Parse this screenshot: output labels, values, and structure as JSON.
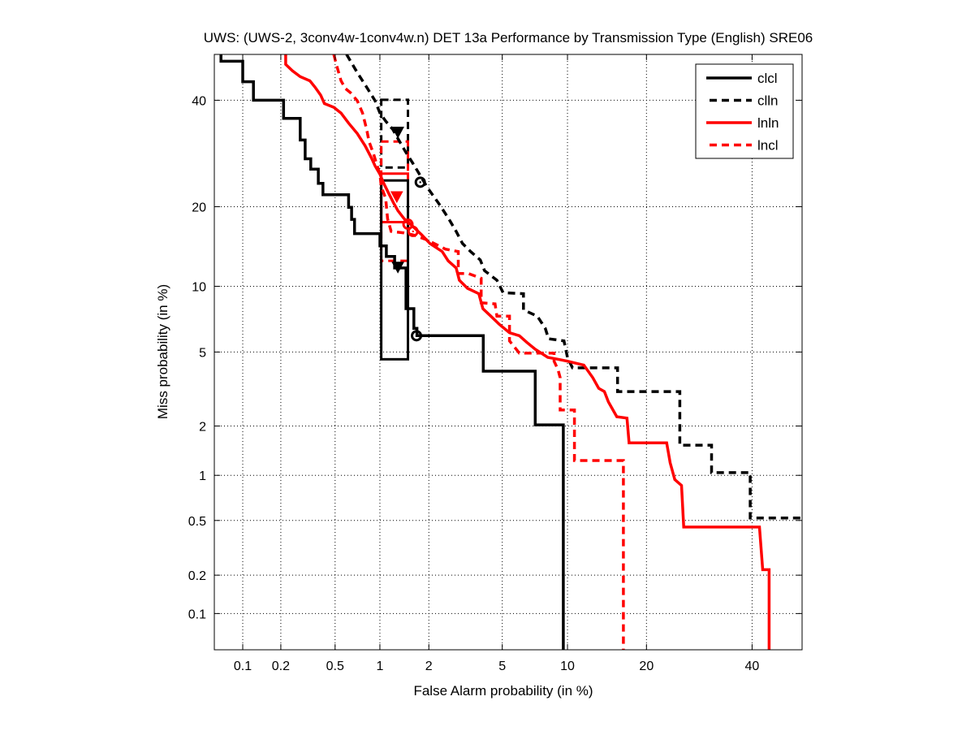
{
  "chart_data": {
    "type": "line",
    "scale": "normal-deviate (DET)",
    "title": "UWS: (UWS-2, 3conv4w-1conv4w.n) DET 13a Performance by Transmission Type (English) SRE06",
    "xlabel": "False Alarm probability (in %)",
    "ylabel": "Miss probability (in %)",
    "xlim": [
      0.058,
      51
    ],
    "ylim": [
      0.05,
      50
    ],
    "xticks": [
      0.1,
      0.2,
      0.5,
      1,
      2,
      5,
      10,
      20,
      40
    ],
    "xtick_labels": [
      "0.1",
      "0.2",
      "0.5",
      "1",
      "2",
      "5",
      "10",
      "20",
      "40"
    ],
    "yticks": [
      0.1,
      0.2,
      0.5,
      1,
      2,
      5,
      10,
      20,
      40
    ],
    "ytick_labels": [
      "0.1",
      "0.2",
      "0.5",
      "1",
      "2",
      "5",
      "10",
      "20",
      "40"
    ],
    "grid": true,
    "legend_position": "top-right",
    "series": [
      {
        "name": "clcl",
        "color": "#000000",
        "dash": "solid",
        "points": [
          [
            0.066,
            50
          ],
          [
            0.066,
            48.5
          ],
          [
            0.1,
            48.5
          ],
          [
            0.1,
            44
          ],
          [
            0.122,
            44
          ],
          [
            0.122,
            40
          ],
          [
            0.21,
            40
          ],
          [
            0.21,
            36.2
          ],
          [
            0.28,
            36.2
          ],
          [
            0.28,
            31.8
          ],
          [
            0.305,
            31.8
          ],
          [
            0.305,
            28.2
          ],
          [
            0.335,
            28.2
          ],
          [
            0.335,
            26.3
          ],
          [
            0.38,
            26.3
          ],
          [
            0.38,
            23.8
          ],
          [
            0.41,
            23.8
          ],
          [
            0.41,
            21.9
          ],
          [
            0.62,
            21.9
          ],
          [
            0.62,
            19.9
          ],
          [
            0.65,
            19.9
          ],
          [
            0.65,
            18.1
          ],
          [
            0.68,
            18.1
          ],
          [
            0.68,
            16.1
          ],
          [
            1.0,
            16.1
          ],
          [
            1.0,
            14.5
          ],
          [
            1.1,
            14.5
          ],
          [
            1.1,
            13.2
          ],
          [
            1.24,
            13.2
          ],
          [
            1.24,
            11.9
          ],
          [
            1.46,
            11.9
          ],
          [
            1.46,
            8.0
          ],
          [
            1.63,
            8.0
          ],
          [
            1.63,
            6.5
          ],
          [
            1.7,
            6.5
          ],
          [
            1.7,
            6.0
          ],
          [
            4.0,
            6.0
          ],
          [
            4.0,
            4.0
          ],
          [
            7.2,
            4.0
          ],
          [
            7.2,
            2.03
          ],
          [
            9.6,
            2.03
          ],
          [
            9.6,
            0.05
          ]
        ]
      },
      {
        "name": "clln",
        "color": "#000000",
        "dash": "dashed",
        "points": [
          [
            0.6,
            50
          ],
          [
            0.71,
            46
          ],
          [
            0.82,
            42.8
          ],
          [
            0.93,
            39.9
          ],
          [
            1.0,
            37.3
          ],
          [
            1.09,
            35.6
          ],
          [
            1.21,
            33.9
          ],
          [
            1.31,
            31.9
          ],
          [
            1.46,
            29.4
          ],
          [
            1.59,
            27.6
          ],
          [
            1.76,
            25.4
          ],
          [
            1.97,
            23.0
          ],
          [
            2.27,
            20.6
          ],
          [
            2.6,
            18.2
          ],
          [
            2.86,
            16.4
          ],
          [
            3.1,
            14.8
          ],
          [
            3.43,
            13.8
          ],
          [
            3.86,
            12.8
          ],
          [
            4.06,
            11.6
          ],
          [
            4.7,
            10.6
          ],
          [
            5.05,
            9.4
          ],
          [
            6.34,
            9.3
          ],
          [
            6.34,
            7.9
          ],
          [
            7.36,
            7.4
          ],
          [
            8.0,
            6.5
          ],
          [
            8.27,
            5.8
          ],
          [
            9.66,
            5.67
          ],
          [
            10.0,
            4.7
          ],
          [
            10.5,
            4.16
          ],
          [
            15.8,
            4.16
          ],
          [
            15.8,
            3.12
          ],
          [
            25.6,
            3.12
          ],
          [
            25.6,
            1.54
          ],
          [
            31.6,
            1.54
          ],
          [
            31.6,
            1.04
          ],
          [
            39.6,
            1.04
          ],
          [
            39.6,
            0.52
          ],
          [
            50.9,
            0.52
          ]
        ]
      },
      {
        "name": "lnln",
        "color": "#ff0000",
        "dash": "solid",
        "points": [
          [
            0.218,
            50
          ],
          [
            0.218,
            47.8
          ],
          [
            0.245,
            46.4
          ],
          [
            0.28,
            45.1
          ],
          [
            0.33,
            44.2
          ],
          [
            0.36,
            42.8
          ],
          [
            0.395,
            41.1
          ],
          [
            0.42,
            39.3
          ],
          [
            0.49,
            38.5
          ],
          [
            0.55,
            37.3
          ],
          [
            0.62,
            35.2
          ],
          [
            0.71,
            33.1
          ],
          [
            0.8,
            30.7
          ],
          [
            0.88,
            28.4
          ],
          [
            0.93,
            26.9
          ],
          [
            1.0,
            25.4
          ],
          [
            1.05,
            24.0
          ],
          [
            1.15,
            21.9
          ],
          [
            1.22,
            20.6
          ],
          [
            1.3,
            19.4
          ],
          [
            1.42,
            18.2
          ],
          [
            1.59,
            17.2
          ],
          [
            1.82,
            15.9
          ],
          [
            2.03,
            14.8
          ],
          [
            2.39,
            13.8
          ],
          [
            2.58,
            12.7
          ],
          [
            2.86,
            11.9
          ],
          [
            2.98,
            10.6
          ],
          [
            3.3,
            9.8
          ],
          [
            3.79,
            9.3
          ],
          [
            3.98,
            8.0
          ],
          [
            4.38,
            7.4
          ],
          [
            4.82,
            6.8
          ],
          [
            5.43,
            6.2
          ],
          [
            6.06,
            6.0
          ],
          [
            6.6,
            5.56
          ],
          [
            7.2,
            5.16
          ],
          [
            8.2,
            4.7
          ],
          [
            9.1,
            4.6
          ],
          [
            10.0,
            4.5
          ],
          [
            11.7,
            4.3
          ],
          [
            12.7,
            3.7
          ],
          [
            13.4,
            3.25
          ],
          [
            14.1,
            3.12
          ],
          [
            14.6,
            2.74
          ],
          [
            15.7,
            2.26
          ],
          [
            17.1,
            2.22
          ],
          [
            17.4,
            1.59
          ],
          [
            23.3,
            1.59
          ],
          [
            23.9,
            1.2
          ],
          [
            24.7,
            0.94
          ],
          [
            25.9,
            0.86
          ],
          [
            26.3,
            0.45
          ],
          [
            41.6,
            0.45
          ],
          [
            42.3,
            0.22
          ],
          [
            43.7,
            0.22
          ],
          [
            43.7,
            0.05
          ]
        ]
      },
      {
        "name": "lncl",
        "color": "#ff0000",
        "dash": "dashed",
        "points": [
          [
            0.49,
            50
          ],
          [
            0.51,
            47.8
          ],
          [
            0.55,
            44.2
          ],
          [
            0.59,
            42.5
          ],
          [
            0.64,
            41.6
          ],
          [
            0.71,
            39.9
          ],
          [
            0.77,
            37.3
          ],
          [
            0.82,
            33.9
          ],
          [
            0.85,
            31.5
          ],
          [
            0.91,
            29.1
          ],
          [
            0.96,
            26.9
          ],
          [
            1.0,
            25.4
          ],
          [
            1.02,
            23.3
          ],
          [
            1.09,
            21.3
          ],
          [
            1.12,
            18.2
          ],
          [
            1.18,
            16.4
          ],
          [
            1.42,
            16.2
          ],
          [
            1.63,
            15.9
          ],
          [
            1.93,
            15.3
          ],
          [
            2.15,
            14.8
          ],
          [
            2.49,
            14.1
          ],
          [
            2.94,
            13.8
          ],
          [
            2.94,
            11.3
          ],
          [
            3.33,
            11.3
          ],
          [
            3.9,
            10.8
          ],
          [
            3.9,
            8.5
          ],
          [
            4.6,
            8.4
          ],
          [
            4.7,
            7.4
          ],
          [
            5.43,
            7.4
          ],
          [
            5.43,
            5.67
          ],
          [
            6.06,
            4.94
          ],
          [
            8.75,
            4.94
          ],
          [
            8.75,
            4.5
          ],
          [
            9.1,
            4.08
          ],
          [
            9.3,
            3.7
          ],
          [
            9.3,
            2.47
          ],
          [
            10.7,
            2.47
          ],
          [
            10.7,
            1.24
          ],
          [
            16.6,
            1.24
          ],
          [
            16.6,
            0.05
          ]
        ]
      }
    ],
    "confidence_boxes": [
      {
        "series": "clln",
        "color": "#000000",
        "dash": "dashed",
        "x": [
          1.02,
          1.5
        ],
        "y": [
          26.6,
          40.1
        ]
      },
      {
        "series": "lncl",
        "color": "#ff0000",
        "dash": "dashed",
        "x": [
          1.02,
          1.5
        ],
        "y": [
          12.7,
          31.5
        ]
      },
      {
        "series": "lnln",
        "color": "#ff0000",
        "dash": "solid",
        "x": [
          1.02,
          1.5
        ],
        "y": [
          17.7,
          25.5
        ]
      },
      {
        "series": "clcl",
        "color": "#000000",
        "dash": "solid",
        "x": [
          1.02,
          1.5
        ],
        "y": [
          4.6,
          24.3
        ]
      }
    ],
    "markers": [
      {
        "series": "clln",
        "kind": "triangle",
        "color": "#000000",
        "x": 1.3,
        "y": 33.4
      },
      {
        "series": "clln",
        "kind": "circle",
        "color": "#000000",
        "x": 1.78,
        "y": 24.0
      },
      {
        "series": "lnln",
        "kind": "triangle",
        "color": "#ff0000",
        "x": 1.28,
        "y": 21.6
      },
      {
        "series": "lnln",
        "kind": "circle",
        "color": "#ff0000",
        "x": 1.5,
        "y": 17.4
      },
      {
        "series": "lncl",
        "kind": "circle",
        "color": "#ff0000",
        "x": 1.61,
        "y": 16.4
      },
      {
        "series": "clcl",
        "kind": "triangle",
        "color": "#000000",
        "x": 1.3,
        "y": 12.0
      },
      {
        "series": "clcl",
        "kind": "circle",
        "color": "#000000",
        "x": 1.69,
        "y": 6.0
      }
    ]
  }
}
